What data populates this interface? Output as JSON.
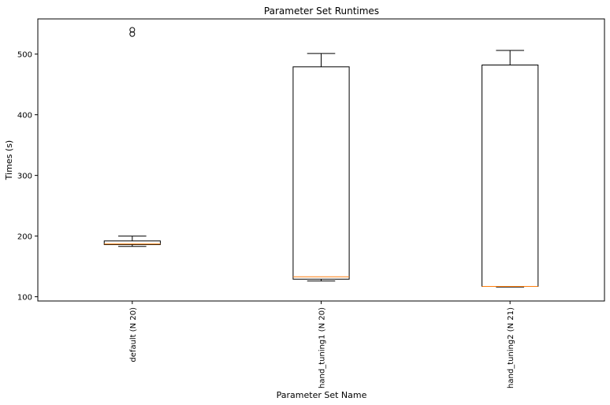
{
  "chart_data": {
    "type": "box",
    "title": "Parameter Set Runtimes",
    "xlabel": "Parameter Set Name",
    "ylabel": "Times (s)",
    "ylim": [
      93,
      558
    ],
    "yticks": [
      100,
      200,
      300,
      400,
      500
    ],
    "categories": [
      "default (N 20)",
      "hand_tuning1 (N 20)",
      "hand_tuning2 (N 21)"
    ],
    "boxes": [
      {
        "whisker_low": 183,
        "q1": 186,
        "median": 187,
        "q3": 192,
        "whisker_high": 200,
        "outliers": [
          533,
          540
        ]
      },
      {
        "whisker_low": 126,
        "q1": 129,
        "median": 133,
        "q3": 479,
        "whisker_high": 501,
        "outliers": []
      },
      {
        "whisker_low": 116,
        "q1": 117,
        "median": 117,
        "q3": 482,
        "whisker_high": 506,
        "outliers": []
      }
    ],
    "colors": {
      "box": "#000000",
      "median": "#ff7f0e"
    },
    "grid": false,
    "legend": "none"
  }
}
